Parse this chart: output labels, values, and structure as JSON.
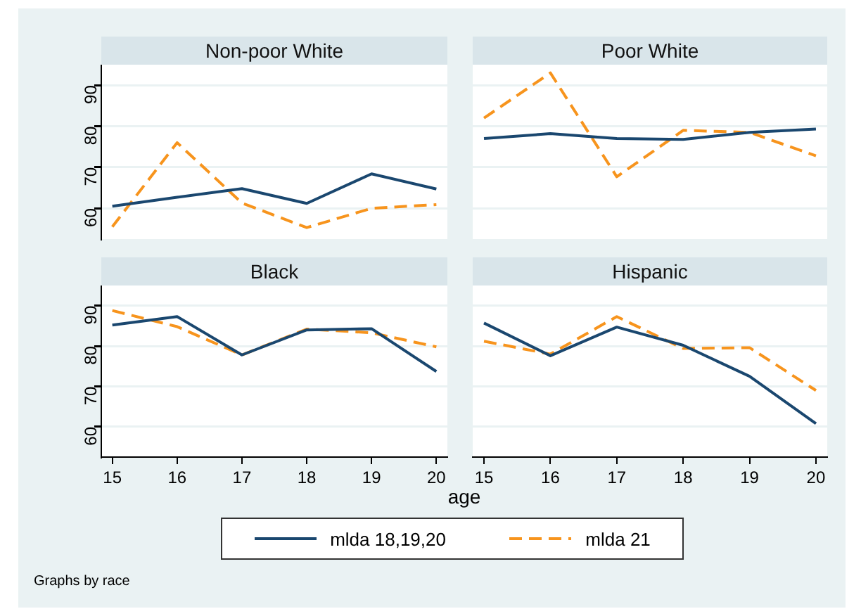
{
  "chart_data": [
    {
      "type": "line",
      "title": "Non-poor White",
      "x": [
        15,
        16,
        17,
        18,
        19,
        20
      ],
      "xlim": [
        14.83,
        20.17
      ],
      "xticks": [
        15,
        16,
        17,
        18,
        19,
        20
      ],
      "ylim": [
        52.5,
        95
      ],
      "yticks": [
        60,
        70,
        80,
        90
      ],
      "grid": "y",
      "tick_labels": "y",
      "marker": "none",
      "legend": "bottom",
      "series": [
        {
          "name": "mlda 18,19,20",
          "color": "#1a476f",
          "line_style": "solid",
          "values": [
            60.5,
            62.7,
            64.8,
            61.2,
            68.4,
            64.7
          ]
        },
        {
          "name": "mlda 21",
          "color": "#f7941d",
          "line_style": "dashed",
          "values": [
            55.5,
            76,
            61.3,
            55.3,
            60,
            60.9
          ]
        }
      ]
    },
    {
      "type": "line",
      "title": "Poor White",
      "x": [
        15,
        16,
        17,
        18,
        19,
        20
      ],
      "xlim": [
        14.83,
        20.17
      ],
      "xticks": [
        15,
        16,
        17,
        18,
        19,
        20
      ],
      "ylim": [
        52.5,
        95
      ],
      "yticks": [
        60,
        70,
        80,
        90
      ],
      "grid": "y",
      "tick_labels": false,
      "marker": "none",
      "series": [
        {
          "name": "mlda 18,19,20",
          "color": "#1a476f",
          "line_style": "solid",
          "values": [
            77,
            78.2,
            77,
            76.8,
            78.5,
            79.3
          ]
        },
        {
          "name": "mlda 21",
          "color": "#f7941d",
          "line_style": "dashed",
          "values": [
            82,
            93,
            67.7,
            79,
            78.5,
            72.8
          ]
        }
      ]
    },
    {
      "type": "line",
      "title": "Black",
      "xlabel": "age",
      "x": [
        15,
        16,
        17,
        18,
        19,
        20
      ],
      "xlim": [
        14.83,
        20.17
      ],
      "xticks": [
        15,
        16,
        17,
        18,
        19,
        20
      ],
      "ylim": [
        52.5,
        95
      ],
      "yticks": [
        60,
        70,
        80,
        90
      ],
      "grid": "y",
      "marker": "none",
      "series": [
        {
          "name": "mlda 18,19,20",
          "color": "#1a476f",
          "line_style": "solid",
          "values": [
            85.2,
            87.3,
            77.8,
            84,
            84.3,
            73.7
          ]
        },
        {
          "name": "mlda 21",
          "color": "#f7941d",
          "line_style": "dashed",
          "values": [
            88.8,
            84.8,
            77.8,
            84.2,
            83.3,
            79.8
          ]
        }
      ]
    },
    {
      "type": "line",
      "title": "Hispanic",
      "x": [
        15,
        16,
        17,
        18,
        19,
        20
      ],
      "xlim": [
        14.83,
        20.17
      ],
      "xticks": [
        15,
        16,
        17,
        18,
        19,
        20
      ],
      "ylim": [
        52.5,
        95
      ],
      "yticks": [
        60,
        70,
        80,
        90
      ],
      "grid": "y",
      "tick_labels": "x",
      "marker": "none",
      "annotations": [
        "Graphs by race"
      ],
      "series": [
        {
          "name": "mlda 18,19,20",
          "color": "#1a476f",
          "line_style": "solid",
          "values": [
            85.7,
            77.6,
            84.7,
            80.2,
            72.5,
            60.8
          ]
        },
        {
          "name": "mlda 21",
          "color": "#f7941d",
          "line_style": "dashed",
          "values": [
            81.2,
            78,
            87.3,
            79.4,
            79.6,
            69
          ]
        }
      ]
    }
  ]
}
